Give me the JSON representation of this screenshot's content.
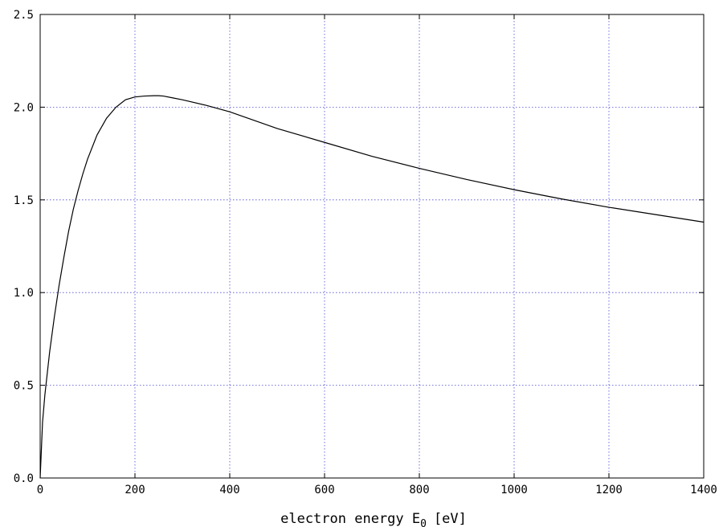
{
  "chart_data": {
    "type": "line",
    "title": "",
    "xlabel": {
      "main": "electron energy E",
      "sub": "0",
      "unit": "[eV]"
    },
    "ylabel": "",
    "xlim": [
      0,
      1400
    ],
    "ylim": [
      0,
      2.5
    ],
    "x_ticks": [
      "0",
      "200",
      "400",
      "600",
      "800",
      "1000",
      "1200",
      "1400"
    ],
    "y_ticks": [
      "0.0",
      "0.5",
      "1.0",
      "1.5",
      "2.0",
      "2.5"
    ],
    "grid": true,
    "legend": "none",
    "series": [
      {
        "x": [
          0,
          5,
          10,
          20,
          30,
          40,
          50,
          60,
          70,
          80,
          90,
          100,
          120,
          140,
          160,
          180,
          200,
          220,
          240,
          250,
          260,
          280,
          300,
          350,
          400,
          450,
          500,
          600,
          700,
          800,
          900,
          1000,
          1100,
          1200,
          1300,
          1400
        ],
        "y": [
          0.0,
          0.3,
          0.45,
          0.68,
          0.87,
          1.04,
          1.19,
          1.33,
          1.45,
          1.55,
          1.64,
          1.72,
          1.85,
          1.94,
          2.0,
          2.04,
          2.055,
          2.06,
          2.062,
          2.062,
          2.06,
          2.05,
          2.04,
          2.01,
          1.975,
          1.93,
          1.885,
          1.81,
          1.735,
          1.67,
          1.61,
          1.555,
          1.505,
          1.46,
          1.42,
          1.38
        ]
      }
    ],
    "colors": {
      "curve": "#000000",
      "grid": "#4a4ad8",
      "frame": "#000000"
    }
  }
}
